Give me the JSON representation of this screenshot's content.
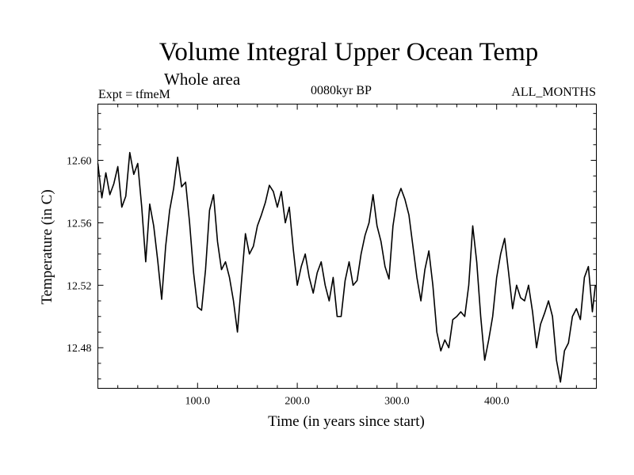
{
  "header": {
    "title": "Volume Integral Upper Ocean Temp",
    "subtitle": "Whole area",
    "experiment": "Expt = tfmeM",
    "period": "0080kyr BP",
    "months": "ALL_MONTHS"
  },
  "chart_data": {
    "type": "line",
    "title": "Volume Integral Upper Ocean Temp",
    "xlabel": "Time (in years since start)",
    "ylabel": "Temperature (in C)",
    "xlim": [
      0,
      500
    ],
    "ylim": [
      12.454,
      12.636
    ],
    "xticks": [
      100,
      200,
      300,
      400
    ],
    "xtick_labels": [
      "100.0",
      "200.0",
      "300.0",
      "400.0"
    ],
    "yticks": [
      12.48,
      12.52,
      12.56,
      12.6
    ],
    "ytick_labels": [
      "12.48",
      "12.52",
      "12.56",
      "12.60"
    ],
    "grid": false,
    "series": [
      {
        "name": "Volume Integral Upper Ocean Temp",
        "x": [
          0,
          4,
          8,
          12,
          16,
          20,
          24,
          28,
          32,
          36,
          40,
          44,
          48,
          52,
          56,
          60,
          64,
          68,
          72,
          76,
          80,
          84,
          88,
          92,
          96,
          100,
          104,
          108,
          112,
          116,
          120,
          124,
          128,
          132,
          136,
          140,
          144,
          148,
          152,
          156,
          160,
          164,
          168,
          172,
          176,
          180,
          184,
          188,
          192,
          196,
          200,
          204,
          208,
          212,
          216,
          220,
          224,
          228,
          232,
          236,
          240,
          244,
          248,
          252,
          256,
          260,
          264,
          268,
          272,
          276,
          280,
          284,
          288,
          292,
          296,
          300,
          304,
          308,
          312,
          316,
          320,
          324,
          328,
          332,
          336,
          340,
          344,
          348,
          352,
          356,
          360,
          364,
          368,
          372,
          376,
          380,
          384,
          388,
          392,
          396,
          400,
          404,
          408,
          412,
          416,
          420,
          424,
          428,
          432,
          436,
          440,
          444,
          448,
          452,
          456,
          460,
          464,
          468,
          472,
          476,
          480,
          484,
          488,
          492,
          496,
          499
        ],
        "values": [
          12.598,
          12.576,
          12.592,
          12.578,
          12.585,
          12.596,
          12.57,
          12.577,
          12.605,
          12.591,
          12.598,
          12.57,
          12.535,
          12.572,
          12.558,
          12.536,
          12.511,
          12.545,
          12.568,
          12.582,
          12.602,
          12.583,
          12.586,
          12.56,
          12.528,
          12.506,
          12.504,
          12.53,
          12.568,
          12.578,
          12.548,
          12.53,
          12.535,
          12.525,
          12.51,
          12.49,
          12.522,
          12.553,
          12.54,
          12.545,
          12.558,
          12.565,
          12.573,
          12.584,
          12.58,
          12.57,
          12.58,
          12.56,
          12.57,
          12.543,
          12.52,
          12.532,
          12.54,
          12.525,
          12.515,
          12.528,
          12.535,
          12.52,
          12.51,
          12.525,
          12.5,
          12.5,
          12.523,
          12.535,
          12.52,
          12.523,
          12.54,
          12.552,
          12.56,
          12.578,
          12.558,
          12.548,
          12.532,
          12.524,
          12.558,
          12.575,
          12.582,
          12.575,
          12.565,
          12.545,
          12.525,
          12.51,
          12.53,
          12.542,
          12.52,
          12.49,
          12.478,
          12.485,
          12.48,
          12.498,
          12.5,
          12.503,
          12.5,
          12.52,
          12.558,
          12.535,
          12.5,
          12.472,
          12.485,
          12.5,
          12.525,
          12.54,
          12.55,
          12.528,
          12.505,
          12.52,
          12.512,
          12.51,
          12.52,
          12.503,
          12.48,
          12.495,
          12.502,
          12.51,
          12.5,
          12.472,
          12.458,
          12.478,
          12.483,
          12.5,
          12.505,
          12.498,
          12.525,
          12.532,
          12.503,
          12.52
        ]
      }
    ]
  }
}
